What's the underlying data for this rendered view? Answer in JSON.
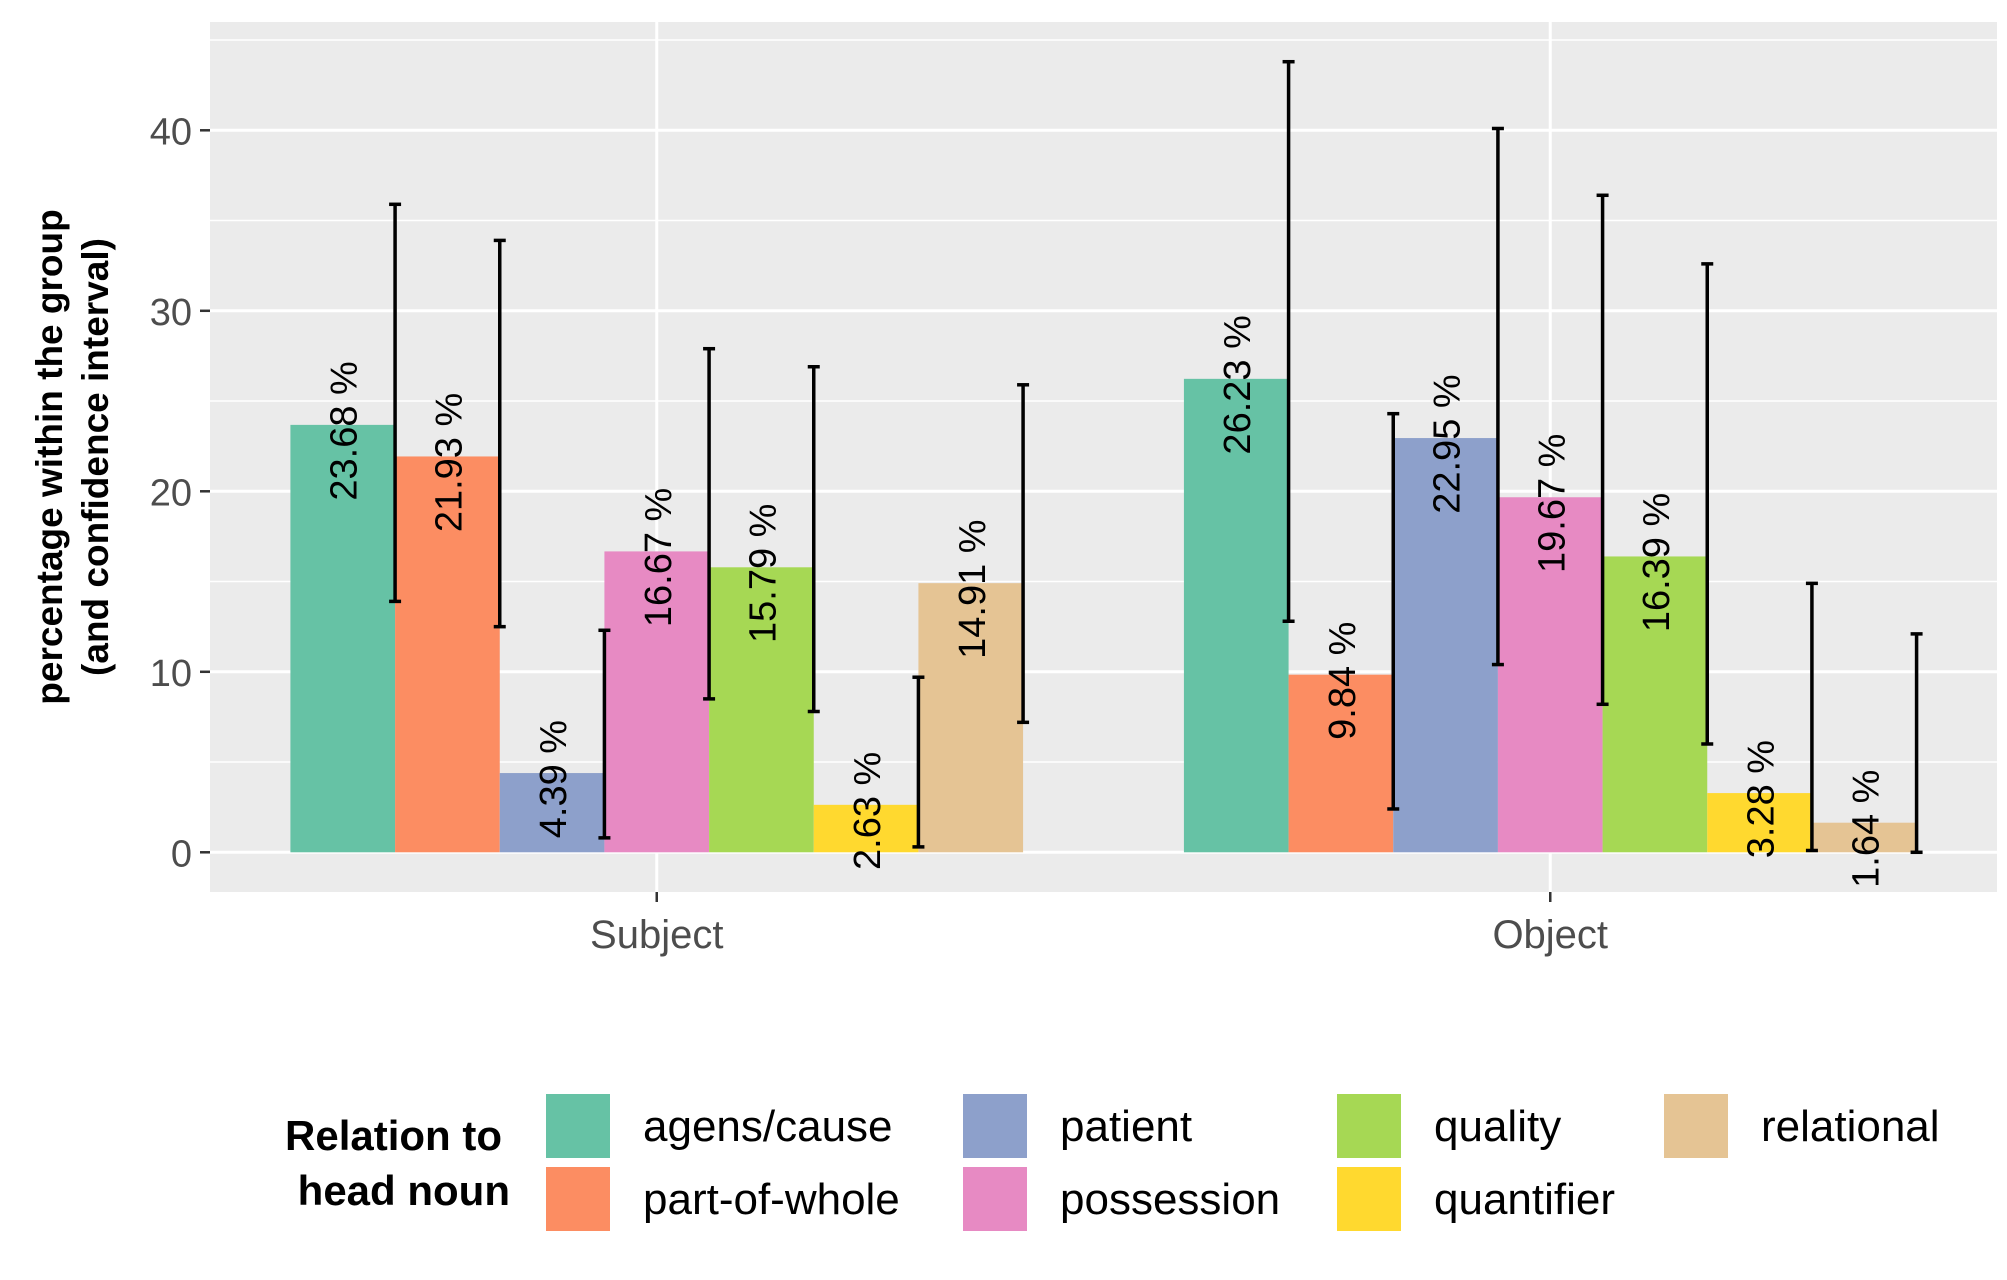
{
  "chart_data": {
    "type": "bar",
    "title": "",
    "xlabel": "",
    "ylabel_lines": [
      "percentage within the group",
      "(and confidence interval)"
    ],
    "categories": [
      "Subject",
      "Object"
    ],
    "ylim": [
      -2.2,
      46
    ],
    "y_ticks": [
      0,
      10,
      20,
      30,
      40
    ],
    "y_tick_labels": [
      "0",
      "10",
      "20",
      "30",
      "40"
    ],
    "grid": true,
    "value_label_suffix": " %",
    "legend": {
      "title_lines": [
        "Relation to",
        "head noun"
      ],
      "position": "bottom"
    },
    "series": [
      {
        "name": "agens/cause",
        "color": "#66C2A5",
        "values": [
          23.68,
          26.23
        ],
        "ci_low": [
          13.9,
          12.8
        ],
        "ci_high": [
          35.9,
          43.8
        ],
        "labels": [
          "23.68 %",
          "26.23 %"
        ]
      },
      {
        "name": "part-of-whole",
        "color": "#FC8D62",
        "values": [
          21.93,
          9.84
        ],
        "ci_low": [
          12.5,
          2.4
        ],
        "ci_high": [
          33.9,
          24.3
        ],
        "labels": [
          "21.93 %",
          "9.84 %"
        ]
      },
      {
        "name": "patient",
        "color": "#8DA0CB",
        "values": [
          4.39,
          22.95
        ],
        "ci_low": [
          0.8,
          10.4
        ],
        "ci_high": [
          12.3,
          40.1
        ],
        "labels": [
          "4.39 %",
          "22.95 %"
        ]
      },
      {
        "name": "possession",
        "color": "#E78AC3",
        "values": [
          16.67,
          19.67
        ],
        "ci_low": [
          8.5,
          8.2
        ],
        "ci_high": [
          27.9,
          36.4
        ],
        "labels": [
          "16.67 %",
          "19.67 %"
        ]
      },
      {
        "name": "quality",
        "color": "#A6D854",
        "values": [
          15.79,
          16.39
        ],
        "ci_low": [
          7.8,
          6.0
        ],
        "ci_high": [
          26.9,
          32.6
        ],
        "labels": [
          "15.79 %",
          "16.39 %"
        ]
      },
      {
        "name": "quantifier",
        "color": "#FFD92F",
        "values": [
          2.63,
          3.28
        ],
        "ci_low": [
          0.3,
          0.1
        ],
        "ci_high": [
          9.7,
          14.9
        ],
        "labels": [
          "2.63 %",
          "3.28 %"
        ]
      },
      {
        "name": "relational",
        "color": "#E5C494",
        "values": [
          14.91,
          1.64
        ],
        "ci_low": [
          7.2,
          0.0
        ],
        "ci_high": [
          25.9,
          12.1
        ],
        "labels": [
          "14.91 %",
          "1.64 %"
        ]
      }
    ]
  }
}
